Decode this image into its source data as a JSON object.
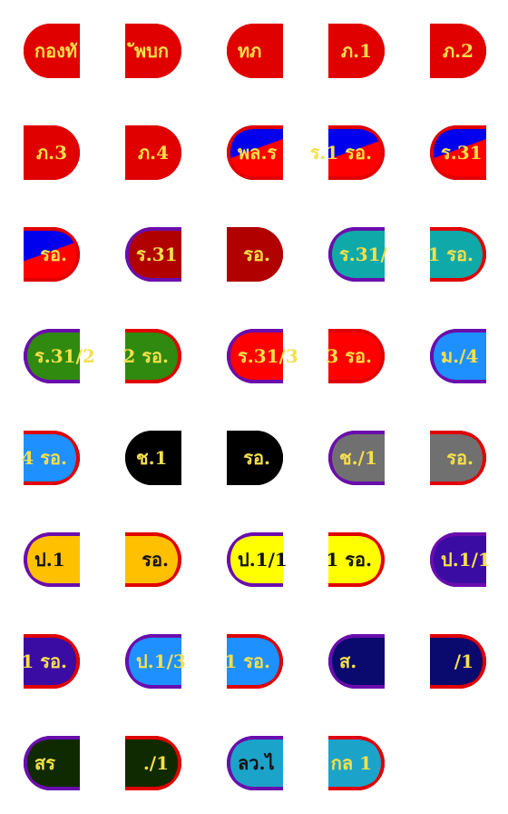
{
  "stickers": [
    {
      "text": "กองทั",
      "shape": "left",
      "bg": "#e00000",
      "bg2": "",
      "border": "#e00000",
      "color": "#f5e04a"
    },
    {
      "text": "ัพบก",
      "shape": "right",
      "bg": "#e00000",
      "bg2": "",
      "border": "#e00000",
      "color": "#f5e04a"
    },
    {
      "text": "ทภ",
      "shape": "left",
      "bg": "#e00000",
      "bg2": "",
      "border": "#e00000",
      "color": "#f5e04a"
    },
    {
      "text": "ภ.1",
      "shape": "right",
      "bg": "#e00000",
      "bg2": "",
      "border": "#e00000",
      "color": "#f5e04a"
    },
    {
      "text": "ภ.2",
      "shape": "right",
      "bg": "#e00000",
      "bg2": "",
      "border": "#e00000",
      "color": "#f5e04a"
    },
    {
      "text": "ภ.3",
      "shape": "right",
      "bg": "#e00000",
      "bg2": "",
      "border": "#e00000",
      "color": "#f5e04a"
    },
    {
      "text": "ภ.4",
      "shape": "right",
      "bg": "#e00000",
      "bg2": "",
      "border": "#e00000",
      "color": "#f5e04a"
    },
    {
      "text": "พล.ร",
      "shape": "left",
      "bg": "#0000ee",
      "bg2": "#ff0000",
      "border": "#e00000",
      "color": "#f5e04a"
    },
    {
      "text": "ร.1 รอ.",
      "shape": "right",
      "bg": "#0000ee",
      "bg2": "#ff0000",
      "border": "#e00000",
      "color": "#f5e04a"
    },
    {
      "text": "ร.31",
      "shape": "left",
      "bg": "#0000ee",
      "bg2": "#ff0000",
      "border": "#e00000",
      "color": "#f5e04a"
    },
    {
      "text": "รอ.",
      "shape": "right",
      "bg": "#0000ee",
      "bg2": "#ff0000",
      "border": "#e00000",
      "color": "#f5e04a"
    },
    {
      "text": "ร.31",
      "shape": "left",
      "bg": "#b00000",
      "bg2": "",
      "border": "#6a0dad",
      "color": "#f5e04a"
    },
    {
      "text": "รอ.",
      "shape": "right",
      "bg": "#b00000",
      "bg2": "",
      "border": "#b00000",
      "color": "#f5e04a"
    },
    {
      "text": "ร.31/",
      "shape": "left",
      "bg": "#10a9a9",
      "bg2": "",
      "border": "#6a0dad",
      "color": "#f5e04a"
    },
    {
      "text": "1 รอ.",
      "shape": "right",
      "bg": "#10a9a9",
      "bg2": "",
      "border": "#e00000",
      "color": "#f5e04a"
    },
    {
      "text": "ร.31/2",
      "shape": "left",
      "bg": "#2f8a0f",
      "bg2": "",
      "border": "#6a0dad",
      "color": "#f5e04a"
    },
    {
      "text": "2 รอ.",
      "shape": "right",
      "bg": "#2f8a0f",
      "bg2": "",
      "border": "#e00000",
      "color": "#f5e04a"
    },
    {
      "text": "ร.31/3",
      "shape": "left",
      "bg": "#ff0000",
      "bg2": "",
      "border": "#6a0dad",
      "color": "#f5e04a"
    },
    {
      "text": "3 รอ.",
      "shape": "right",
      "bg": "#ff0000",
      "bg2": "",
      "border": "#e00000",
      "color": "#f5e04a"
    },
    {
      "text": "ม./4",
      "shape": "left",
      "bg": "#1e90ff",
      "bg2": "",
      "border": "#6a0dad",
      "color": "#f5e04a"
    },
    {
      "text": "4 รอ.",
      "shape": "right",
      "bg": "#1e90ff",
      "bg2": "",
      "border": "#e00000",
      "color": "#f5e04a"
    },
    {
      "text": "ช.1",
      "shape": "left",
      "bg": "#000000",
      "bg2": "",
      "border": "#000000",
      "color": "#f5e04a"
    },
    {
      "text": "รอ.",
      "shape": "right",
      "bg": "#000000",
      "bg2": "",
      "border": "#000000",
      "color": "#f5e04a"
    },
    {
      "text": "ช./1",
      "shape": "left",
      "bg": "#707070",
      "bg2": "",
      "border": "#6a0dad",
      "color": "#f5e04a"
    },
    {
      "text": "รอ.",
      "shape": "right",
      "bg": "#707070",
      "bg2": "",
      "border": "#e00000",
      "color": "#f5e04a"
    },
    {
      "text": "ป.1",
      "shape": "left",
      "bg": "#ffc000",
      "bg2": "",
      "border": "#6a0dad",
      "color": "#111111"
    },
    {
      "text": "รอ.",
      "shape": "right",
      "bg": "#ffc000",
      "bg2": "",
      "border": "#e00000",
      "color": "#111111"
    },
    {
      "text": "ป.1/1",
      "shape": "left",
      "bg": "#ffff00",
      "bg2": "",
      "border": "#6a0dad",
      "color": "#111111"
    },
    {
      "text": "1 รอ.",
      "shape": "right",
      "bg": "#ffff00",
      "bg2": "",
      "border": "#e00000",
      "color": "#111111"
    },
    {
      "text": "ป.1/1",
      "shape": "left",
      "bg": "#3a0ca3",
      "bg2": "",
      "border": "#6a0dad",
      "color": "#f5e04a"
    },
    {
      "text": "1 รอ.",
      "shape": "right",
      "bg": "#3a0ca3",
      "bg2": "",
      "border": "#e00000",
      "color": "#f5e04a"
    },
    {
      "text": "ป.1/3",
      "shape": "left",
      "bg": "#1e90ff",
      "bg2": "",
      "border": "#6a0dad",
      "color": "#f5e04a"
    },
    {
      "text": "1 รอ.",
      "shape": "right",
      "bg": "#1e90ff",
      "bg2": "",
      "border": "#e00000",
      "color": "#f5e04a"
    },
    {
      "text": "ส.",
      "shape": "left",
      "bg": "#0a0a6e",
      "bg2": "",
      "border": "#6a0dad",
      "color": "#f5e04a"
    },
    {
      "text": "/1",
      "shape": "right",
      "bg": "#0a0a6e",
      "bg2": "",
      "border": "#e00000",
      "color": "#f5e04a"
    },
    {
      "text": "สร",
      "shape": "left",
      "bg": "#102a00",
      "bg2": "",
      "border": "#6a0dad",
      "color": "#f5e04a"
    },
    {
      "text": "./1",
      "shape": "right",
      "bg": "#102a00",
      "bg2": "",
      "border": "#e00000",
      "color": "#f5e04a"
    },
    {
      "text": "ลว.ไ",
      "shape": "left",
      "bg": "#1ca3c9",
      "bg2": "",
      "border": "#6a0dad",
      "color": "#111111"
    },
    {
      "text": "กล 1",
      "shape": "right",
      "bg": "#1ca3c9",
      "bg2": "",
      "border": "#e00000",
      "color": "#f5e04a"
    }
  ]
}
